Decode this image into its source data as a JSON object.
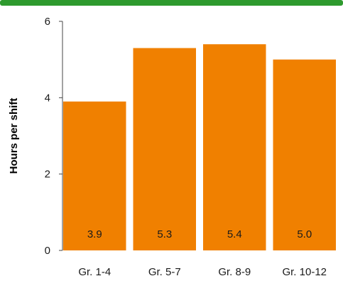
{
  "colors": {
    "bar": "#F08000",
    "top_strip": "#2E9A2E",
    "axis": "#444444"
  },
  "chart_data": {
    "type": "bar",
    "title": "",
    "xlabel": "",
    "ylabel": "Hours per shift",
    "categories": [
      "Gr. 1-4",
      "Gr. 5-7",
      "Gr. 8-9",
      "Gr. 10-12"
    ],
    "values": [
      3.9,
      5.3,
      5.4,
      5.0
    ],
    "value_labels": [
      "3.9",
      "5.3",
      "5.4",
      "5.0"
    ],
    "ylim": [
      0,
      6
    ],
    "yticks": [
      0,
      2,
      4,
      6
    ],
    "ytick_labels": [
      "0",
      "2",
      "4",
      "6"
    ],
    "grid": false,
    "legend": "none"
  }
}
